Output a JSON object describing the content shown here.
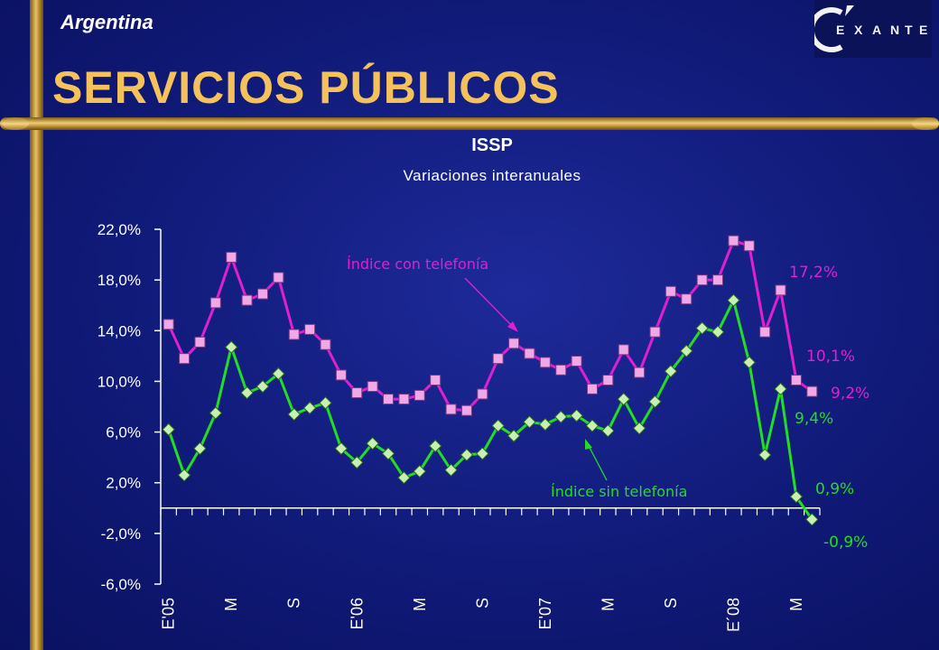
{
  "header": {
    "country": "Argentina",
    "title": "SERVICIOS PÚBLICOS",
    "logo_text": "EXANTE"
  },
  "colors": {
    "background": "#101a78",
    "title": "#f5c15a",
    "series_con": "#e020d0",
    "series_sin": "#22dd22",
    "marker_con": "#f0a8e8",
    "marker_sin": "#c8f0b0",
    "axis": "#ffffff",
    "gold": "#d8b050"
  },
  "chart_data": {
    "type": "line",
    "title": "ISSP",
    "subtitle": "Variaciones interanuales",
    "xlabel": "",
    "ylabel": "",
    "ylim": [
      -6,
      22
    ],
    "yticks": [
      22,
      18,
      14,
      10,
      6,
      2,
      -2,
      -6
    ],
    "ytick_labels": [
      "22,0%",
      "18,0%",
      "14,0%",
      "10,0%",
      "6,0%",
      "2,0%",
      "-2,0%",
      "-6,0%"
    ],
    "x_tick_labels": [
      {
        "index": 0,
        "label": "E'05"
      },
      {
        "index": 4,
        "label": "M"
      },
      {
        "index": 8,
        "label": "S"
      },
      {
        "index": 12,
        "label": "E'06"
      },
      {
        "index": 16,
        "label": "M"
      },
      {
        "index": 20,
        "label": "S"
      },
      {
        "index": 24,
        "label": "E'07"
      },
      {
        "index": 28,
        "label": "M"
      },
      {
        "index": 32,
        "label": "S"
      },
      {
        "index": 36,
        "label": "E´08"
      },
      {
        "index": 40,
        "label": "M"
      }
    ],
    "grid": false,
    "series": [
      {
        "name": "Índice con telefonía",
        "values": [
          14.5,
          11.8,
          13.1,
          16.2,
          19.8,
          16.4,
          16.9,
          18.2,
          13.7,
          14.1,
          12.9,
          10.5,
          9.1,
          9.6,
          8.6,
          8.6,
          8.9,
          10.1,
          7.8,
          7.7,
          9.0,
          11.8,
          13.0,
          12.2,
          11.5,
          10.9,
          11.6,
          9.4,
          10.1,
          12.5,
          10.7,
          13.9,
          17.1,
          16.5,
          18.0,
          18.0,
          21.1,
          20.7,
          13.9,
          17.2,
          10.1,
          9.2
        ]
      },
      {
        "name": "Índice sin telefonía",
        "values": [
          6.2,
          2.6,
          4.7,
          7.5,
          12.7,
          9.1,
          9.6,
          10.6,
          7.4,
          7.9,
          8.3,
          4.7,
          3.6,
          5.1,
          4.3,
          2.4,
          2.9,
          4.9,
          3.0,
          4.2,
          4.3,
          6.5,
          5.7,
          6.8,
          6.6,
          7.2,
          7.3,
          6.5,
          6.1,
          8.6,
          6.3,
          8.4,
          10.8,
          12.4,
          14.2,
          13.9,
          16.4,
          11.5,
          4.2,
          9.4,
          0.9,
          -0.9
        ]
      }
    ],
    "annotations": [
      {
        "text": "Índice con telefonía",
        "series": 0
      },
      {
        "text": "Índice sin telefonía",
        "series": 1
      },
      {
        "text": "17,2%",
        "series": 0,
        "index": 39
      },
      {
        "text": "10,1%",
        "series": 0,
        "index": 40
      },
      {
        "text": "9,2%",
        "series": 0,
        "index": 41
      },
      {
        "text": "9,4%",
        "series": 1,
        "index": 39
      },
      {
        "text": "0,9%",
        "series": 1,
        "index": 40
      },
      {
        "text": "-0,9%",
        "series": 1,
        "index": 41
      }
    ]
  }
}
